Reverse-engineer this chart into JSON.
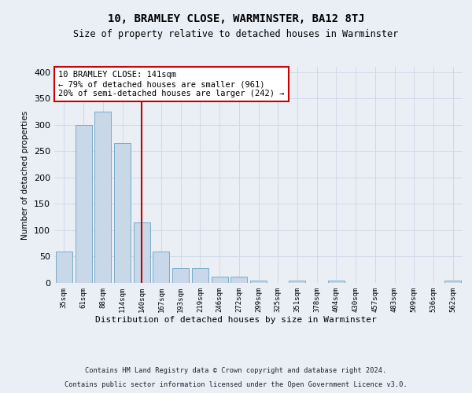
{
  "title": "10, BRAMLEY CLOSE, WARMINSTER, BA12 8TJ",
  "subtitle": "Size of property relative to detached houses in Warminster",
  "xlabel": "Distribution of detached houses by size in Warminster",
  "ylabel": "Number of detached properties",
  "bar_labels": [
    "35sqm",
    "61sqm",
    "88sqm",
    "114sqm",
    "140sqm",
    "167sqm",
    "193sqm",
    "219sqm",
    "246sqm",
    "272sqm",
    "299sqm",
    "325sqm",
    "351sqm",
    "378sqm",
    "404sqm",
    "430sqm",
    "457sqm",
    "483sqm",
    "509sqm",
    "536sqm",
    "562sqm"
  ],
  "bar_values": [
    60,
    300,
    325,
    265,
    115,
    60,
    28,
    28,
    12,
    12,
    5,
    0,
    5,
    0,
    5,
    0,
    0,
    0,
    0,
    0,
    4
  ],
  "bar_color": "#c8d8e8",
  "bar_edge_color": "#7aaac8",
  "vline_color": "#cc0000",
  "annotation_text": "10 BRAMLEY CLOSE: 141sqm\n← 79% of detached houses are smaller (961)\n20% of semi-detached houses are larger (242) →",
  "annotation_box_color": "#ffffff",
  "annotation_box_edge": "#cc0000",
  "ylim": [
    0,
    410
  ],
  "yticks": [
    0,
    50,
    100,
    150,
    200,
    250,
    300,
    350,
    400
  ],
  "grid_color": "#d0d8e8",
  "footer_line1": "Contains HM Land Registry data © Crown copyright and database right 2024.",
  "footer_line2": "Contains public sector information licensed under the Open Government Licence v3.0.",
  "background_color": "#eaeff6",
  "plot_bg_color": "#eaeff6"
}
